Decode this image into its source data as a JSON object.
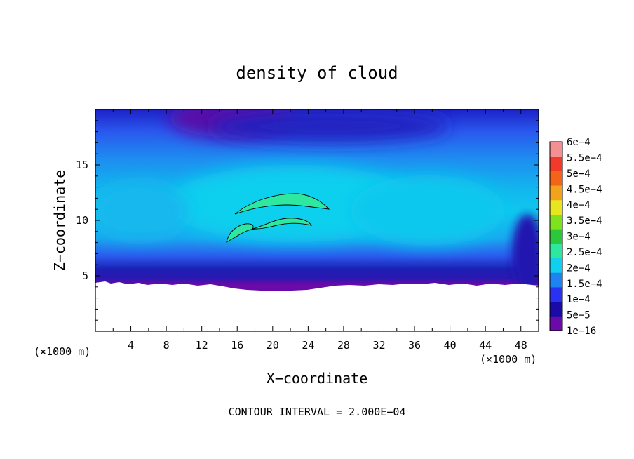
{
  "chart_data": {
    "type": "heatmap",
    "title": "density of cloud",
    "xlabel": "X−coordinate",
    "ylabel": "Z−coordinate",
    "x_unit": "(×1000 m)",
    "z_unit": "(×1000 m)",
    "xlim": [
      0,
      50
    ],
    "ylim": [
      0,
      20
    ],
    "x_ticks": [
      4,
      8,
      12,
      16,
      20,
      24,
      28,
      32,
      36,
      40,
      44,
      48
    ],
    "x_tick_labels": [
      "4",
      "8",
      "12",
      "16",
      "20",
      "24",
      "28",
      "32",
      "36",
      "40",
      "44",
      "48"
    ],
    "y_ticks": [
      5,
      10,
      15
    ],
    "y_tick_labels": [
      "5",
      "10",
      "15"
    ],
    "colorbar": {
      "labels": [
        "1e−16",
        "5e−5",
        "1e−4",
        "1.5e−4",
        "2e−4",
        "2.5e−4",
        "3e−4",
        "3.5e−4",
        "4e−4",
        "4.5e−4",
        "5e−4",
        "5.5e−4",
        "6e−4"
      ],
      "values": [
        1e-16,
        5e-05,
        0.0001,
        0.00015,
        0.0002,
        0.00025,
        0.0003,
        0.00035,
        0.0004,
        0.00045,
        0.0005,
        0.00055,
        0.0006
      ],
      "colors": [
        "#6a0aa8",
        "#1a0aa6",
        "#2a32f2",
        "#1e82f0",
        "#11cfee",
        "#2ee8a0",
        "#2bc83c",
        "#7fe21f",
        "#e8e61e",
        "#f2a21c",
        "#f46418",
        "#f23a2a",
        "#f49092"
      ]
    },
    "contour_interval_label": "CONTOUR INTERVAL = 2.000E−04",
    "cloud_base_z": 4.3,
    "cloud_top_z": 20,
    "max_region_value": 0.0002
  }
}
